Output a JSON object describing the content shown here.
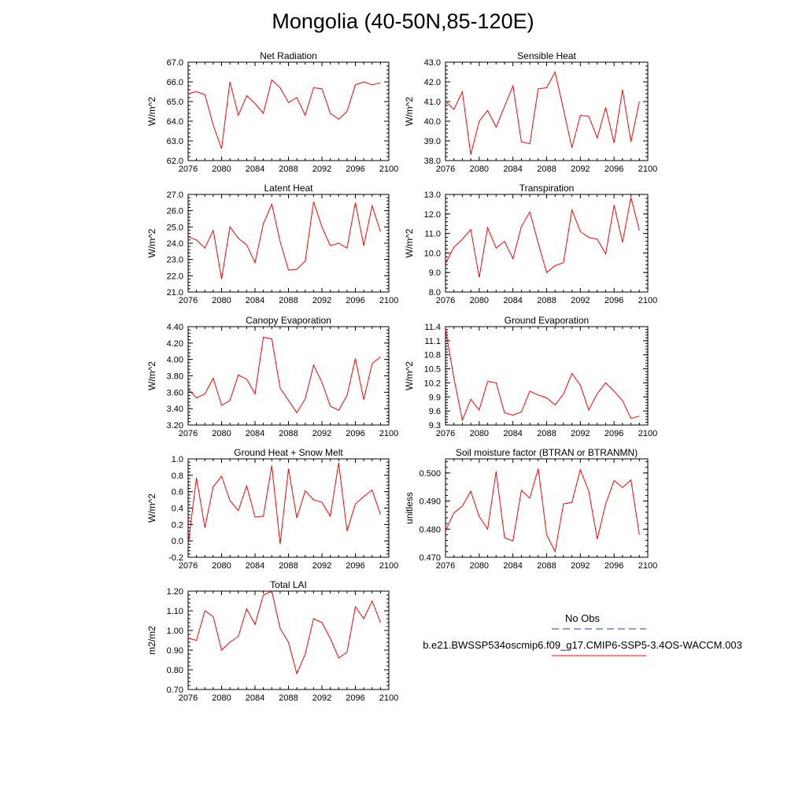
{
  "title": "Mongolia (40-50N,85-120E)",
  "colors": {
    "model": "#ff0000",
    "obs": "#2b3a9e",
    "axis": "#000000"
  },
  "legend": {
    "obs_label": "No Obs",
    "model_label": "b.e21.BWSSP534oscmip6.f09_g17.CMIP6-SSP5-3.4OS-WACCM.003"
  },
  "chart_data": [
    {
      "type": "line",
      "title": "Net Radiation",
      "ylabel": "W/m^2",
      "xlim": [
        2076,
        2100
      ],
      "ylim": [
        62.0,
        67.0
      ],
      "xticks": [
        "2076",
        "2080",
        "2084",
        "2088",
        "2092",
        "2096",
        "2100"
      ],
      "yticks": [
        "62.0",
        "63.0",
        "64.0",
        "65.0",
        "66.0",
        "67.0"
      ],
      "x": [
        2076,
        2077,
        2078,
        2079,
        2080,
        2081,
        2082,
        2083,
        2084,
        2085,
        2086,
        2087,
        2088,
        2089,
        2090,
        2091,
        2092,
        2093,
        2094,
        2095,
        2096,
        2097,
        2098,
        2099
      ],
      "series": [
        {
          "values": [
            65.4,
            65.5,
            65.35,
            63.8,
            62.6,
            66.0,
            64.3,
            65.3,
            64.9,
            64.4,
            66.1,
            65.7,
            64.95,
            65.2,
            64.3,
            65.7,
            65.65,
            64.4,
            64.1,
            64.5,
            65.85,
            66.0,
            65.85,
            65.95
          ]
        }
      ]
    },
    {
      "type": "line",
      "title": "Sensible Heat",
      "ylabel": "W/m^2",
      "xlim": [
        2076,
        2100
      ],
      "ylim": [
        38.0,
        43.0
      ],
      "xticks": [
        "2076",
        "2080",
        "2084",
        "2088",
        "2092",
        "2096",
        "2100"
      ],
      "yticks": [
        "38.0",
        "39.0",
        "40.0",
        "41.0",
        "42.0",
        "43.0"
      ],
      "x": [
        2076,
        2077,
        2078,
        2079,
        2080,
        2081,
        2082,
        2083,
        2084,
        2085,
        2086,
        2087,
        2088,
        2089,
        2090,
        2091,
        2092,
        2093,
        2094,
        2095,
        2096,
        2097,
        2098,
        2099
      ],
      "series": [
        {
          "values": [
            41.0,
            40.6,
            41.5,
            38.3,
            40.0,
            40.55,
            39.7,
            40.75,
            41.8,
            38.95,
            38.85,
            41.65,
            41.7,
            42.5,
            40.6,
            38.65,
            40.3,
            40.25,
            39.15,
            40.7,
            38.9,
            41.6,
            38.95,
            41.0
          ]
        }
      ]
    },
    {
      "type": "line",
      "title": "Latent Heat",
      "ylabel": "W/m^2",
      "xlim": [
        2076,
        2100
      ],
      "ylim": [
        21.0,
        27.0
      ],
      "xticks": [
        "2076",
        "2080",
        "2084",
        "2088",
        "2092",
        "2096",
        "2100"
      ],
      "yticks": [
        "21.0",
        "22.0",
        "23.0",
        "24.0",
        "25.0",
        "26.0",
        "27.0"
      ],
      "x": [
        2076,
        2077,
        2078,
        2079,
        2080,
        2081,
        2082,
        2083,
        2084,
        2085,
        2086,
        2087,
        2088,
        2089,
        2090,
        2091,
        2092,
        2093,
        2094,
        2095,
        2096,
        2097,
        2098,
        2099
      ],
      "series": [
        {
          "values": [
            24.4,
            24.2,
            23.7,
            24.8,
            21.8,
            25.0,
            24.3,
            23.9,
            22.8,
            25.2,
            26.4,
            24.1,
            22.35,
            22.4,
            22.9,
            26.55,
            25.0,
            23.85,
            24.0,
            23.7,
            26.5,
            23.85,
            26.3,
            24.7
          ]
        }
      ]
    },
    {
      "type": "line",
      "title": "Transpiration",
      "ylabel": "W/m^2",
      "xlim": [
        2076,
        2100
      ],
      "ylim": [
        8.0,
        13.0
      ],
      "xticks": [
        "2076",
        "2080",
        "2084",
        "2088",
        "2092",
        "2096",
        "2100"
      ],
      "yticks": [
        "8.0",
        "9.0",
        "10.0",
        "11.0",
        "12.0",
        "13.0"
      ],
      "x": [
        2076,
        2077,
        2078,
        2079,
        2080,
        2081,
        2082,
        2083,
        2084,
        2085,
        2086,
        2087,
        2088,
        2089,
        2090,
        2091,
        2092,
        2093,
        2094,
        2095,
        2096,
        2097,
        2098,
        2099
      ],
      "series": [
        {
          "values": [
            9.45,
            10.3,
            10.7,
            11.2,
            8.75,
            11.3,
            10.25,
            10.6,
            9.7,
            11.35,
            12.1,
            10.5,
            9.0,
            9.35,
            9.5,
            12.2,
            11.1,
            10.8,
            10.7,
            9.95,
            12.45,
            10.55,
            12.85,
            11.15
          ]
        }
      ]
    },
    {
      "type": "line",
      "title": "Canopy Evaporation",
      "ylabel": "W/m^2",
      "xlim": [
        2076,
        2100
      ],
      "ylim": [
        3.2,
        4.4
      ],
      "xticks": [
        "2076",
        "2080",
        "2084",
        "2088",
        "2092",
        "2096",
        "2100"
      ],
      "yticks": [
        "3.20",
        "3.40",
        "3.60",
        "3.80",
        "4.00",
        "4.20",
        "4.40"
      ],
      "x": [
        2076,
        2077,
        2078,
        2079,
        2080,
        2081,
        2082,
        2083,
        2084,
        2085,
        2086,
        2087,
        2088,
        2089,
        2090,
        2091,
        2092,
        2093,
        2094,
        2095,
        2096,
        2097,
        2098,
        2099
      ],
      "series": [
        {
          "values": [
            3.64,
            3.53,
            3.58,
            3.77,
            3.44,
            3.5,
            3.81,
            3.76,
            3.58,
            4.27,
            4.25,
            3.65,
            3.5,
            3.35,
            3.52,
            3.93,
            3.72,
            3.43,
            3.38,
            3.56,
            4.01,
            3.51,
            3.95,
            4.03
          ]
        }
      ]
    },
    {
      "type": "line",
      "title": "Ground Evaporation",
      "ylabel": "W/m^2",
      "xlim": [
        2076,
        2100
      ],
      "ylim": [
        9.3,
        11.4
      ],
      "xticks": [
        "2076",
        "2080",
        "2084",
        "2088",
        "2092",
        "2096",
        "2100"
      ],
      "yticks": [
        "9.3",
        "9.6",
        "9.9",
        "10.2",
        "10.5",
        "10.8",
        "11.1",
        "11.4"
      ],
      "x": [
        2076,
        2077,
        2078,
        2079,
        2080,
        2081,
        2082,
        2083,
        2084,
        2085,
        2086,
        2087,
        2088,
        2089,
        2090,
        2091,
        2092,
        2093,
        2094,
        2095,
        2096,
        2097,
        2098,
        2099
      ],
      "series": [
        {
          "values": [
            11.35,
            10.3,
            9.4,
            9.85,
            9.62,
            10.23,
            10.2,
            9.56,
            9.51,
            9.58,
            10.02,
            9.94,
            9.88,
            9.73,
            9.96,
            10.4,
            10.15,
            9.62,
            9.97,
            10.2,
            10.02,
            9.82,
            9.44,
            9.49
          ]
        }
      ]
    },
    {
      "type": "line",
      "title": "Ground Heat + Snow Melt",
      "ylabel": "W/m^2",
      "xlim": [
        2076,
        2100
      ],
      "ylim": [
        -0.2,
        1.0
      ],
      "xticks": [
        "2076",
        "2080",
        "2084",
        "2088",
        "2092",
        "2096",
        "2100"
      ],
      "yticks": [
        "-0.2",
        "0.0",
        "0.2",
        "0.4",
        "0.6",
        "0.8",
        "1.0"
      ],
      "x": [
        2076,
        2077,
        2078,
        2079,
        2080,
        2081,
        2082,
        2083,
        2084,
        2085,
        2086,
        2087,
        2088,
        2089,
        2090,
        2091,
        2092,
        2093,
        2094,
        2095,
        2096,
        2097,
        2098,
        2099
      ],
      "series": [
        {
          "values": [
            -0.05,
            0.77,
            0.16,
            0.66,
            0.79,
            0.49,
            0.37,
            0.67,
            0.29,
            0.3,
            0.92,
            -0.04,
            0.88,
            0.28,
            0.61,
            0.5,
            0.47,
            0.3,
            0.95,
            0.12,
            0.45,
            0.54,
            0.62,
            0.32
          ]
        }
      ]
    },
    {
      "type": "line",
      "title": "Soil moisture factor (BTRAN or BTRANMN)",
      "ylabel": "unitless",
      "xlim": [
        2076,
        2100
      ],
      "ylim": [
        0.47,
        0.505
      ],
      "xticks": [
        "2076",
        "2080",
        "2084",
        "2088",
        "2092",
        "2096",
        "2100"
      ],
      "yticks": [
        "0.470",
        "0.480",
        "0.490",
        "0.500"
      ],
      "ytick_values": [
        0.47,
        0.48,
        0.49,
        0.5
      ],
      "x": [
        2076,
        2077,
        2078,
        2079,
        2080,
        2081,
        2082,
        2083,
        2084,
        2085,
        2086,
        2087,
        2088,
        2089,
        2090,
        2091,
        2092,
        2093,
        2094,
        2095,
        2096,
        2097,
        2098,
        2099
      ],
      "series": [
        {
          "values": [
            0.4795,
            0.4858,
            0.4882,
            0.4935,
            0.4845,
            0.48,
            0.5005,
            0.477,
            0.4758,
            0.4938,
            0.491,
            0.5015,
            0.478,
            0.472,
            0.489,
            0.4895,
            0.5012,
            0.4935,
            0.4765,
            0.489,
            0.4973,
            0.4948,
            0.4975,
            0.478
          ]
        }
      ]
    },
    {
      "type": "line",
      "title": "Total LAI",
      "ylabel": "m2/m2",
      "xlim": [
        2076,
        2100
      ],
      "ylim": [
        0.7,
        1.2
      ],
      "xticks": [
        "2076",
        "2080",
        "2084",
        "2088",
        "2092",
        "2096",
        "2100"
      ],
      "yticks": [
        "0.70",
        "0.80",
        "0.90",
        "1.00",
        "1.10",
        "1.20"
      ],
      "x": [
        2076,
        2077,
        2078,
        2079,
        2080,
        2081,
        2082,
        2083,
        2084,
        2085,
        2086,
        2087,
        2088,
        2089,
        2090,
        2091,
        2092,
        2093,
        2094,
        2095,
        2096,
        2097,
        2098,
        2099
      ],
      "series": [
        {
          "values": [
            0.96,
            0.95,
            1.1,
            1.07,
            0.9,
            0.94,
            0.97,
            1.11,
            1.03,
            1.18,
            1.2,
            1.01,
            0.94,
            0.78,
            0.88,
            1.06,
            1.04,
            0.96,
            0.86,
            0.89,
            1.12,
            1.06,
            1.15,
            1.04
          ]
        }
      ]
    }
  ]
}
